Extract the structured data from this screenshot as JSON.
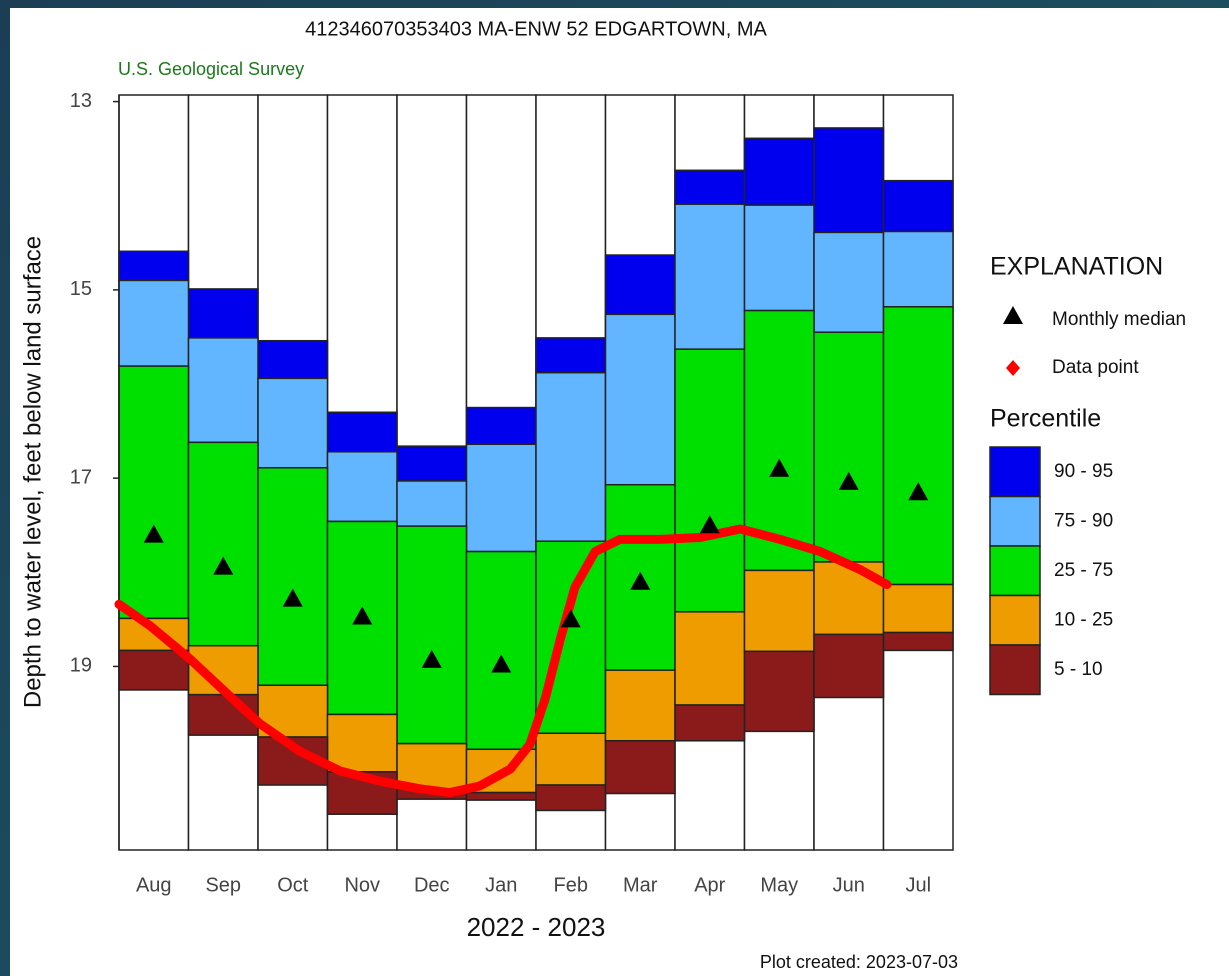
{
  "chart_data": {
    "type": "percentile_bar",
    "title": "412346070353403 MA-ENW   52 EDGARTOWN, MA",
    "subtitle": "U.S. Geological Survey",
    "ylabel": "Depth to water level, feet below land surface",
    "xlabel": "2022 - 2023",
    "note": "Plot created: 2023-07-03",
    "legend_title": "EXPLANATION",
    "percentile_title": "Percentile",
    "y_inverted": true,
    "ylim": [
      12.93,
      20.95
    ],
    "yticks": [
      13,
      15,
      17,
      19
    ],
    "categories": [
      "Aug",
      "Sep",
      "Oct",
      "Nov",
      "Dec",
      "Jan",
      "Feb",
      "Mar",
      "Apr",
      "May",
      "Jun",
      "Jul"
    ],
    "bands": [
      {
        "name": "90 - 95",
        "color": "#0000ee",
        "values": [
          [
            14.59,
            14.9
          ],
          [
            14.99,
            15.51
          ],
          [
            15.54,
            15.94
          ],
          [
            16.3,
            16.72
          ],
          [
            16.66,
            17.03
          ],
          [
            16.25,
            16.64
          ],
          [
            15.51,
            15.88
          ],
          [
            14.63,
            15.26
          ],
          [
            13.73,
            14.09
          ],
          [
            13.39,
            14.1
          ],
          [
            13.28,
            14.39
          ],
          [
            13.84,
            14.38
          ]
        ]
      },
      {
        "name": "75 - 90",
        "color": "#62b6ff",
        "values": [
          [
            14.9,
            15.81
          ],
          [
            15.51,
            16.62
          ],
          [
            15.94,
            16.89
          ],
          [
            16.72,
            17.46
          ],
          [
            17.03,
            17.51
          ],
          [
            16.64,
            17.78
          ],
          [
            15.88,
            17.67
          ],
          [
            15.26,
            17.07
          ],
          [
            14.09,
            15.63
          ],
          [
            14.1,
            15.22
          ],
          [
            14.39,
            15.45
          ],
          [
            14.38,
            15.18
          ]
        ]
      },
      {
        "name": "25 - 75",
        "color": "#00e000",
        "values": [
          [
            15.81,
            18.49
          ],
          [
            16.62,
            18.78
          ],
          [
            16.89,
            19.2
          ],
          [
            17.46,
            19.51
          ],
          [
            17.51,
            19.82
          ],
          [
            17.78,
            19.88
          ],
          [
            17.67,
            19.71
          ],
          [
            17.07,
            19.04
          ],
          [
            15.63,
            18.42
          ],
          [
            15.22,
            17.98
          ],
          [
            15.45,
            17.89
          ],
          [
            15.18,
            18.13
          ]
        ]
      },
      {
        "name": "10 - 25",
        "color": "#ef9c00",
        "values": [
          [
            18.49,
            18.83
          ],
          [
            18.78,
            19.3
          ],
          [
            19.2,
            19.75
          ],
          [
            19.51,
            20.12
          ],
          [
            19.82,
            20.3
          ],
          [
            19.88,
            20.34
          ],
          [
            19.71,
            20.26
          ],
          [
            19.04,
            19.79
          ],
          [
            18.42,
            19.41
          ],
          [
            17.98,
            18.84
          ],
          [
            17.89,
            18.66
          ],
          [
            18.13,
            18.64
          ]
        ]
      },
      {
        "name": "5 - 10",
        "color": "#8b1a1a",
        "values": [
          [
            18.83,
            19.25
          ],
          [
            19.3,
            19.73
          ],
          [
            19.75,
            20.26
          ],
          [
            20.12,
            20.57
          ],
          [
            20.3,
            20.41
          ],
          [
            20.34,
            20.42
          ],
          [
            20.26,
            20.53
          ],
          [
            19.79,
            20.35
          ],
          [
            19.41,
            19.79
          ],
          [
            18.84,
            19.69
          ],
          [
            18.66,
            19.33
          ],
          [
            18.64,
            18.83
          ]
        ]
      }
    ],
    "median": {
      "name": "Monthly median",
      "color": "#000000",
      "values": [
        17.6,
        17.94,
        18.28,
        18.47,
        18.93,
        18.98,
        18.5,
        18.1,
        17.5,
        16.9,
        17.04,
        17.15
      ]
    },
    "data_points": {
      "name": "Data point",
      "color": "#ff0000",
      "x": [
        0,
        0.45,
        1.02,
        1.6,
        2.03,
        2.6,
        3.18,
        3.76,
        4.33,
        4.76,
        5.19,
        5.63,
        5.91,
        6.13,
        6.35,
        6.56,
        6.85,
        7.21,
        7.78,
        8.36,
        8.94,
        9.51,
        10.09,
        10.66,
        11.05
      ],
      "values": [
        18.34,
        18.57,
        18.92,
        19.32,
        19.61,
        19.9,
        20.11,
        20.22,
        20.3,
        20.34,
        20.27,
        20.09,
        19.83,
        19.35,
        18.71,
        18.16,
        17.78,
        17.65,
        17.65,
        17.63,
        17.54,
        17.65,
        17.78,
        17.97,
        18.13
      ]
    }
  }
}
